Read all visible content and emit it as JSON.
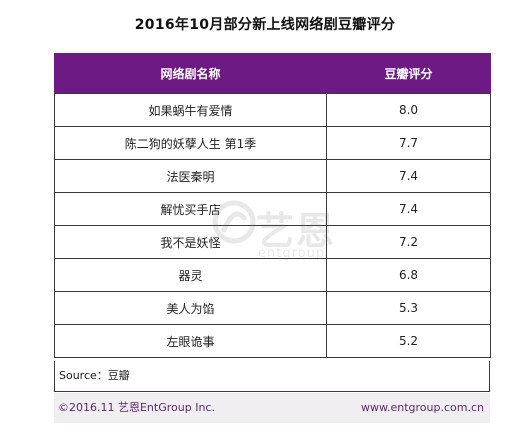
{
  "title": "2016年10月部分新上线网络剧豆瓣评分",
  "chart_data": {
    "type": "table",
    "title": "2016年10月部分新上线网络剧豆瓣评分",
    "columns": [
      "网络剧名称",
      "豆瓣评分"
    ],
    "rows": [
      {
        "name": "如果蜗牛有爱情",
        "score": "8.0"
      },
      {
        "name": "陈二狗的妖孽人生 第1季",
        "score": "7.7"
      },
      {
        "name": "法医秦明",
        "score": "7.4"
      },
      {
        "name": "解忧买手店",
        "score": "7.4"
      },
      {
        "name": "我不是妖怪",
        "score": "7.2"
      },
      {
        "name": "器灵",
        "score": "6.8"
      },
      {
        "name": "美人为馅",
        "score": "5.3"
      },
      {
        "name": "左眼诡事",
        "score": "5.2"
      }
    ]
  },
  "source": "Source：豆瓣",
  "footer": {
    "copyright": "©2016.11  艺恩EntGroup Inc.",
    "url": "www.entgroup.com.cn"
  },
  "watermark": {
    "cn": "艺恩",
    "en": "entgroup"
  },
  "colors": {
    "header_bg": "#6d1a84",
    "header_text": "#ffffff",
    "footer_bg": "#f1eef1"
  }
}
